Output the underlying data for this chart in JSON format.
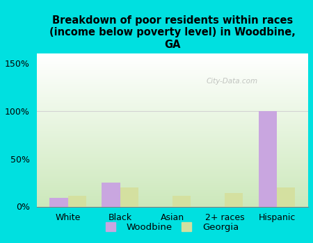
{
  "title": "Breakdown of poor residents within races\n(income below poverty level) in Woodbine,\nGA",
  "categories": [
    "White",
    "Black",
    "Asian",
    "2+ races",
    "Hispanic"
  ],
  "woodbine_values": [
    9,
    25,
    0,
    0,
    100
  ],
  "georgia_values": [
    11,
    20,
    11,
    14,
    20
  ],
  "woodbine_color": "#c9a6e0",
  "georgia_color": "#d4e0a0",
  "background_color": "#00e0e0",
  "plot_bg_top": "#ffffff",
  "plot_bg_bottom": "#cce8bb",
  "ylim": [
    0,
    160
  ],
  "yticks": [
    0,
    50,
    100,
    150
  ],
  "ytick_labels": [
    "0%",
    "50%",
    "100%",
    "150%"
  ],
  "bar_width": 0.35,
  "title_fontsize": 10.5,
  "watermark": "City-Data.com",
  "legend_labels": [
    "Woodbine",
    "Georgia"
  ]
}
